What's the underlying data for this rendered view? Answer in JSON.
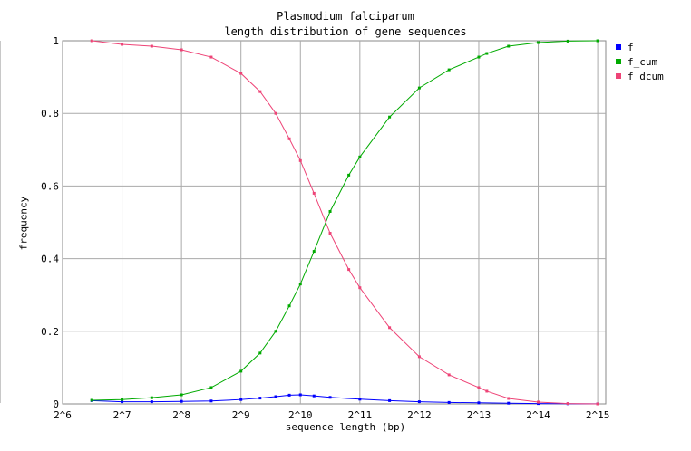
{
  "chart_data": {
    "type": "line",
    "title": "Plasmodium falciparum",
    "subtitle": "length distribution of gene sequences",
    "xlabel": "sequence length (bp)",
    "ylabel": "frequency",
    "x_scale": "log2",
    "xlim": [
      64,
      36000
    ],
    "ylim": [
      0,
      1
    ],
    "x_ticks": [
      "2^6",
      "2^7",
      "2^8",
      "2^9",
      "2^10",
      "2^11",
      "2^12",
      "2^13",
      "2^14",
      "2^15"
    ],
    "y_ticks": [
      "0",
      "0.2",
      "0.4",
      "0.6",
      "0.8",
      "1"
    ],
    "grid": true,
    "legend_position": "top-right",
    "series": [
      {
        "name": "f",
        "color": "#0000ff",
        "x": [
          90,
          128,
          181,
          256,
          362,
          512,
          640,
          768,
          900,
          1024,
          1200,
          1448,
          2048,
          2896,
          4096,
          5793,
          8192,
          11585,
          16384,
          23170,
          32768
        ],
        "y": [
          0.009,
          0.006,
          0.006,
          0.007,
          0.008,
          0.012,
          0.016,
          0.02,
          0.024,
          0.025,
          0.022,
          0.018,
          0.013,
          0.009,
          0.006,
          0.004,
          0.003,
          0.002,
          0.001,
          0.0005,
          0.0002
        ]
      },
      {
        "name": "f_cum",
        "color": "#00aa00",
        "x": [
          90,
          128,
          181,
          256,
          362,
          512,
          640,
          768,
          900,
          1024,
          1200,
          1448,
          1800,
          2048,
          2896,
          4096,
          5793,
          8192,
          9000,
          11585,
          16384,
          23170,
          32768
        ],
        "y": [
          0.01,
          0.012,
          0.017,
          0.025,
          0.045,
          0.09,
          0.14,
          0.2,
          0.27,
          0.33,
          0.42,
          0.53,
          0.63,
          0.68,
          0.79,
          0.87,
          0.92,
          0.955,
          0.965,
          0.985,
          0.995,
          0.999,
          1.0
        ]
      },
      {
        "name": "f_dcum",
        "color": "#ee4477",
        "x": [
          90,
          128,
          181,
          256,
          362,
          512,
          640,
          768,
          900,
          1024,
          1200,
          1448,
          1800,
          2048,
          2896,
          4096,
          5793,
          8192,
          9000,
          11585,
          16384,
          23170,
          32768
        ],
        "y": [
          1.0,
          0.99,
          0.985,
          0.975,
          0.955,
          0.91,
          0.86,
          0.8,
          0.73,
          0.67,
          0.58,
          0.47,
          0.37,
          0.32,
          0.21,
          0.13,
          0.08,
          0.045,
          0.035,
          0.015,
          0.005,
          0.001,
          0.0
        ]
      }
    ]
  }
}
